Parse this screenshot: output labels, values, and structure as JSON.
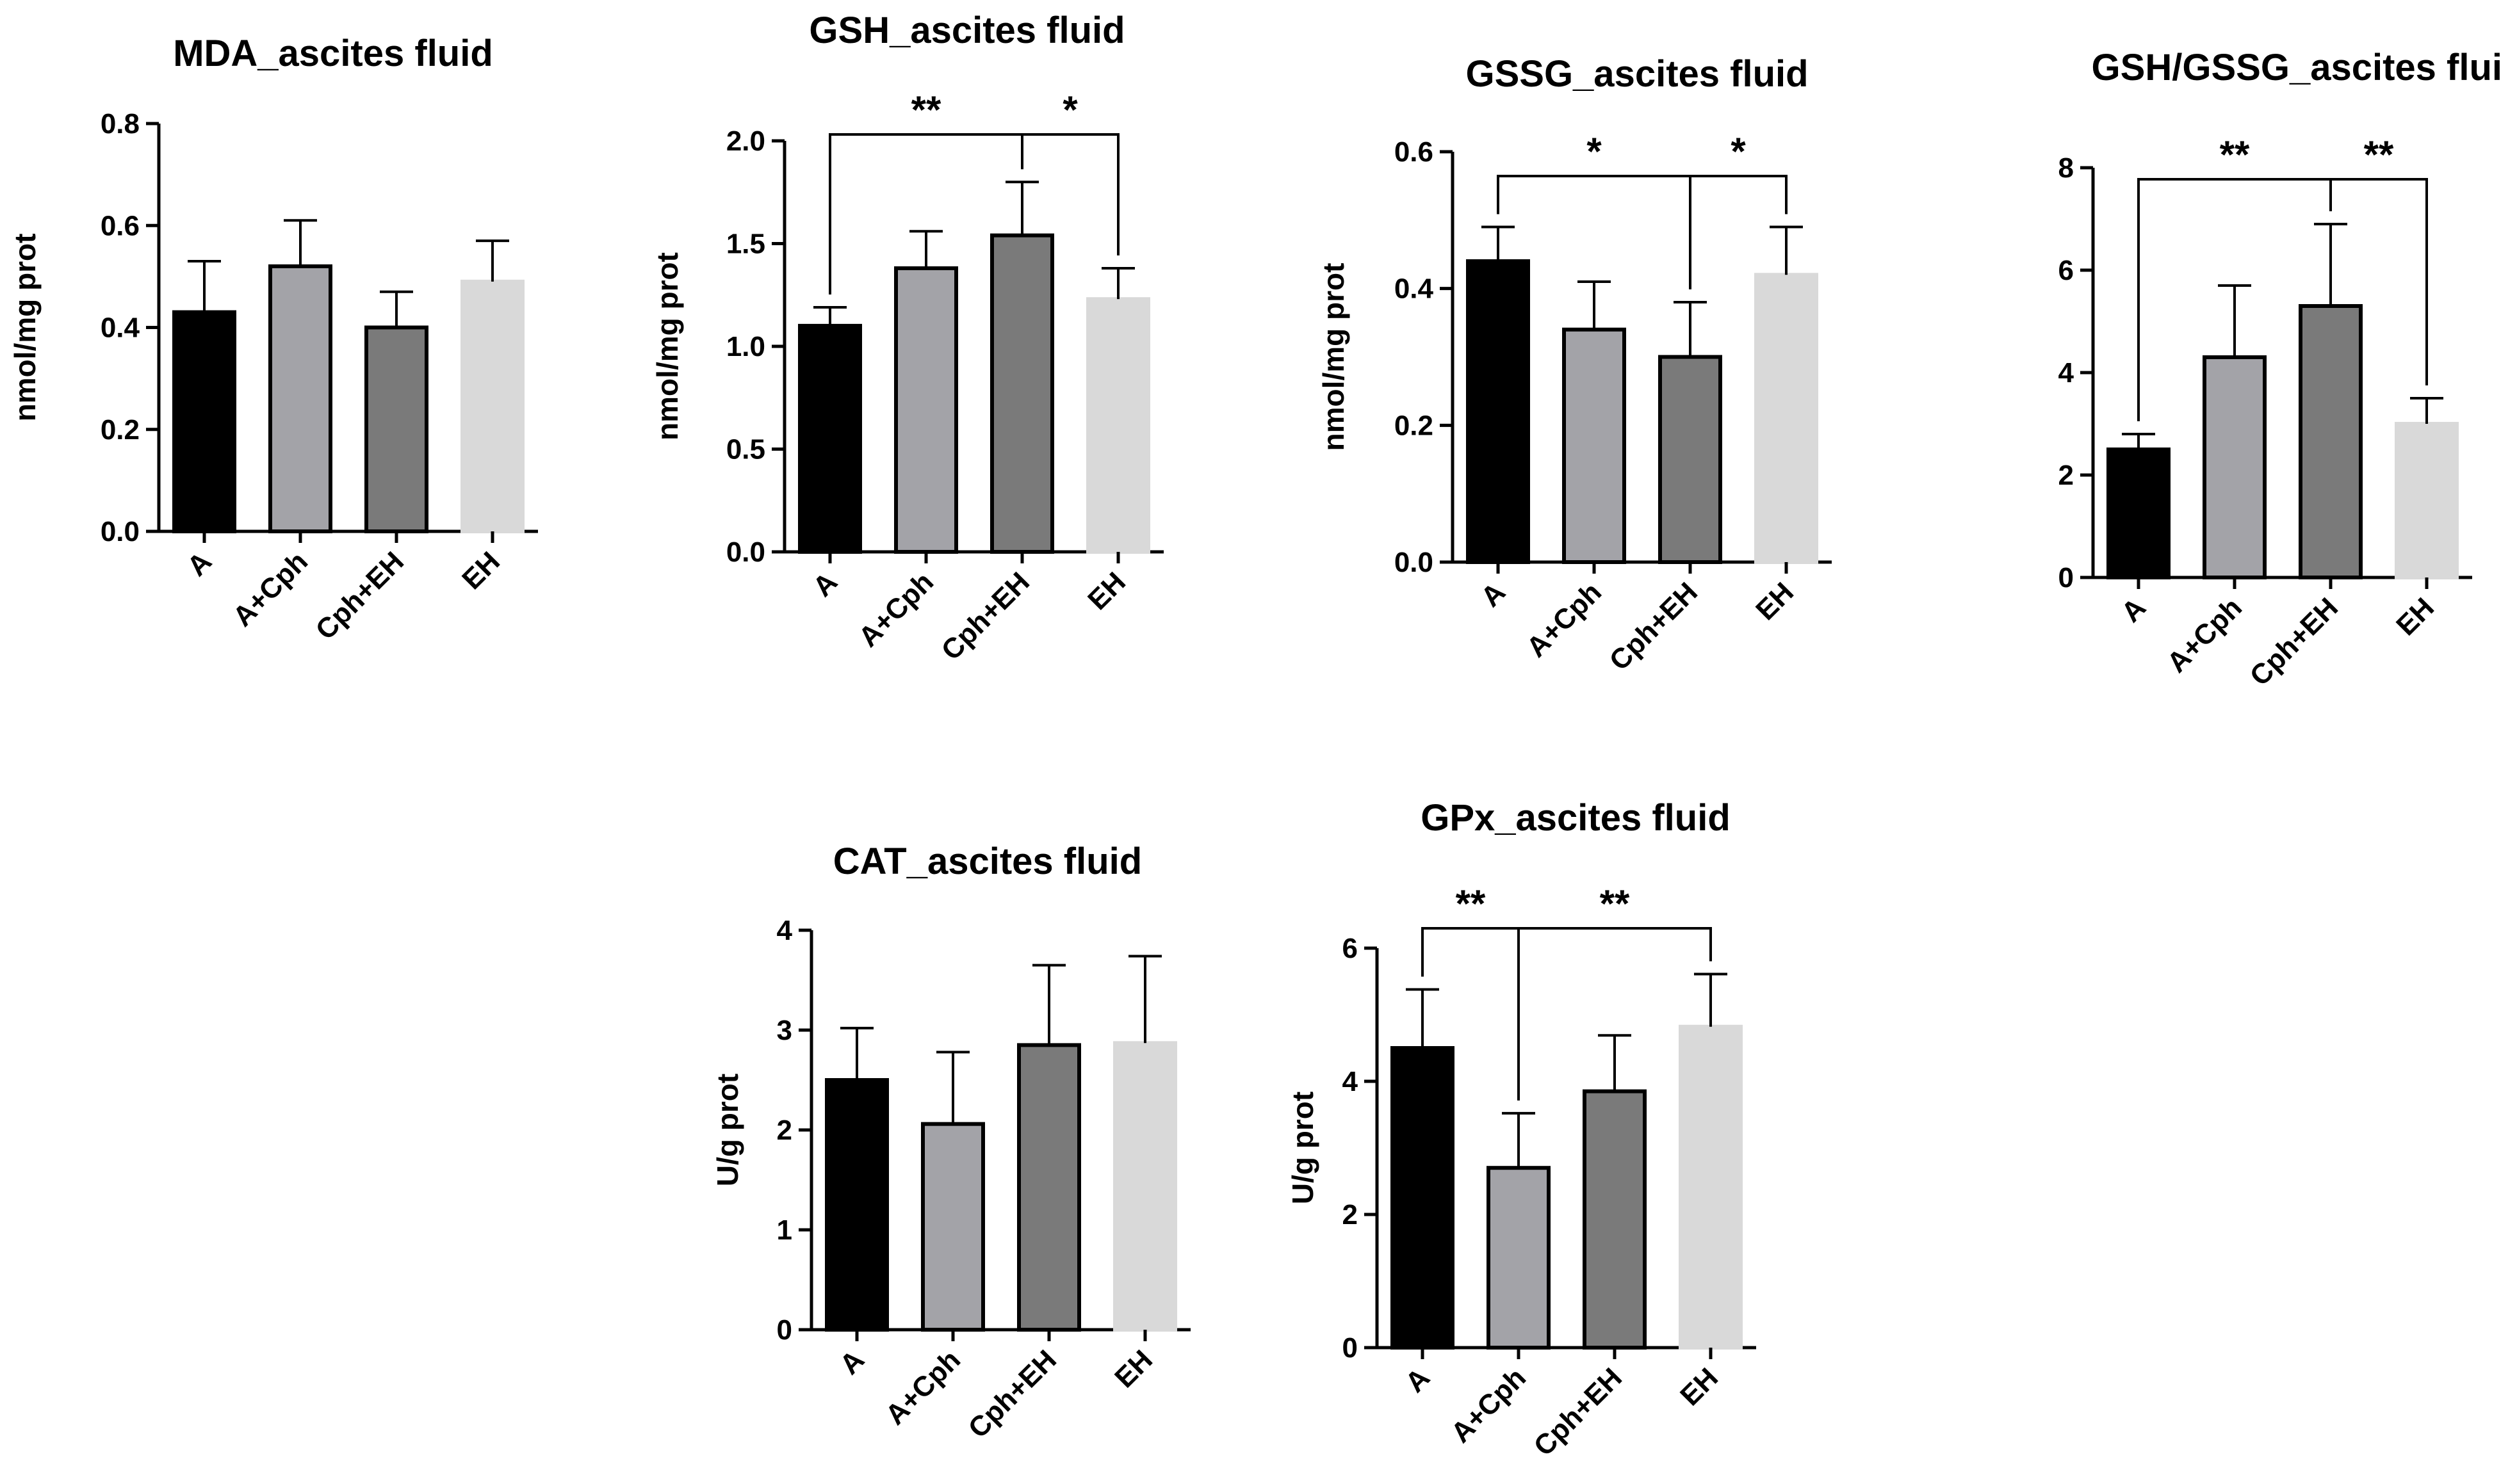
{
  "figure": {
    "colors": {
      "A": "#000000",
      "A+Cph": "#a3a3a8",
      "Cph+EH": "#7a7a7a",
      "EH": "#d9d9d9",
      "ink": "#000000"
    }
  },
  "chart_data": [
    {
      "id": "mda",
      "type": "bar",
      "title": "MDA_ascites fluid",
      "ylabel": "nmol/mg prot",
      "xlabel": "",
      "categories": [
        "A",
        "A+Cph",
        "Cph+EH",
        "EH"
      ],
      "values": [
        0.43,
        0.52,
        0.4,
        0.49
      ],
      "errors": [
        0.1,
        0.09,
        0.07,
        0.08
      ],
      "ylim": [
        0,
        0.8
      ],
      "yticks": [
        "0.0",
        "0.2",
        "0.4",
        "0.6",
        "0.8"
      ],
      "significance": []
    },
    {
      "id": "gsh",
      "type": "bar",
      "title": "GSH_ascites fluid",
      "ylabel": "nmol/mg prot",
      "xlabel": "",
      "categories": [
        "A",
        "A+Cph",
        "Cph+EH",
        "EH"
      ],
      "values": [
        1.1,
        1.38,
        1.54,
        1.23
      ],
      "errors": [
        0.09,
        0.18,
        0.26,
        0.15
      ],
      "ylim": [
        0,
        2.0
      ],
      "yticks": [
        "0.0",
        "0.5",
        "1.0",
        "1.5",
        "2.0"
      ],
      "significance": [
        {
          "from": 0,
          "to": 2,
          "label": "**"
        },
        {
          "from": 2,
          "to": 3,
          "label": "*"
        }
      ]
    },
    {
      "id": "gssg",
      "type": "bar",
      "title": "GSSG_ascites fluid",
      "ylabel": "nmol/mg prot",
      "xlabel": "",
      "categories": [
        "A",
        "A+Cph",
        "Cph+EH",
        "EH"
      ],
      "values": [
        0.44,
        0.34,
        0.3,
        0.42
      ],
      "errors": [
        0.05,
        0.07,
        0.08,
        0.07
      ],
      "ylim": [
        0,
        0.6
      ],
      "yticks": [
        "0.0",
        "0.2",
        "0.4",
        "0.6"
      ],
      "significance": [
        {
          "from": 0,
          "to": 2,
          "label": "*"
        },
        {
          "from": 2,
          "to": 3,
          "label": "*"
        }
      ]
    },
    {
      "id": "ratio",
      "type": "bar",
      "title": "GSH/GSSG_ascites fluid",
      "ylabel": "",
      "xlabel": "",
      "categories": [
        "A",
        "A+Cph",
        "Cph+EH",
        "EH"
      ],
      "values": [
        2.5,
        4.3,
        5.3,
        3.0
      ],
      "errors": [
        0.3,
        1.4,
        1.6,
        0.5
      ],
      "ylim": [
        0,
        8
      ],
      "yticks": [
        "0",
        "2",
        "4",
        "6",
        "8"
      ],
      "significance": [
        {
          "from": 0,
          "to": 2,
          "label": "**"
        },
        {
          "from": 2,
          "to": 3,
          "label": "**"
        }
      ]
    },
    {
      "id": "cat",
      "type": "bar",
      "title": "CAT_ascites fluid",
      "ylabel": "U/g prot",
      "xlabel": "",
      "categories": [
        "A",
        "A+Cph",
        "Cph+EH",
        "EH"
      ],
      "values": [
        2.5,
        2.06,
        2.85,
        2.87
      ],
      "errors": [
        0.52,
        0.72,
        0.8,
        0.87
      ],
      "ylim": [
        0,
        4
      ],
      "yticks": [
        "0",
        "1",
        "2",
        "3",
        "4"
      ],
      "significance": []
    },
    {
      "id": "gpx",
      "type": "bar",
      "title": "GPx_ascites fluid",
      "ylabel": "U/g prot",
      "xlabel": "",
      "categories": [
        "A",
        "A+Cph",
        "Cph+EH",
        "EH"
      ],
      "values": [
        4.5,
        2.7,
        3.85,
        4.82
      ],
      "errors": [
        0.88,
        0.82,
        0.84,
        0.79
      ],
      "ylim": [
        0,
        6
      ],
      "yticks": [
        "0",
        "2",
        "4",
        "6"
      ],
      "significance": [
        {
          "from": 0,
          "to": 1,
          "label": "**"
        },
        {
          "from": 1,
          "to": 3,
          "label": "**"
        }
      ]
    }
  ]
}
